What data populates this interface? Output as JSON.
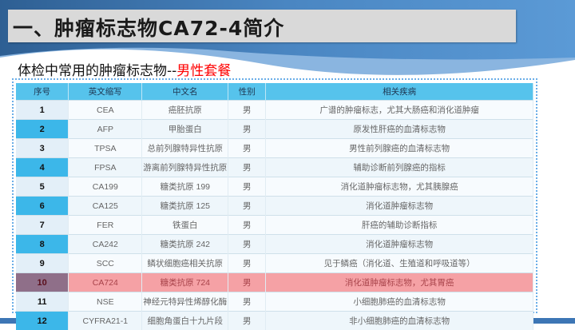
{
  "title": "一、肿瘤标志物CA72-4简介",
  "subtitle": {
    "text": "体检中常用的肿瘤标志物--",
    "highlight": "男性套餐"
  },
  "colors": {
    "header": "#56c3ec",
    "highlight_row": "#f5a1a5",
    "accent_red": "#ff0000",
    "number_cell_blue": "#3cb7e9"
  },
  "table": {
    "headers": [
      "序号",
      "英文缩写",
      "中文名",
      "性别",
      "相关疾病"
    ],
    "highlighted_row": 10,
    "rows": [
      {
        "no": "1",
        "abbr": "CEA",
        "name": "癌胚抗原",
        "sex": "男",
        "disease": "广谱的肿瘤标志，尤其大肠癌和消化道肿瘤"
      },
      {
        "no": "2",
        "abbr": "AFP",
        "name": "甲胎蛋白",
        "sex": "男",
        "disease": "原发性肝癌的血清标志物"
      },
      {
        "no": "3",
        "abbr": "TPSA",
        "name": "总前列腺特异性抗原",
        "sex": "男",
        "disease": "男性前列腺癌的血清标志物"
      },
      {
        "no": "4",
        "abbr": "FPSA",
        "name": "游离前列腺特异性抗原",
        "sex": "男",
        "disease": "辅助诊断前列腺癌的指标"
      },
      {
        "no": "5",
        "abbr": "CA199",
        "name": "糖类抗原 199",
        "sex": "男",
        "disease": "消化道肿瘤标志物，尤其胰腺癌"
      },
      {
        "no": "6",
        "abbr": "CA125",
        "name": "糖类抗原 125",
        "sex": "男",
        "disease": "消化道肿瘤标志物"
      },
      {
        "no": "7",
        "abbr": "FER",
        "name": "铁蛋白",
        "sex": "男",
        "disease": "肝癌的辅助诊断指标"
      },
      {
        "no": "8",
        "abbr": "CA242",
        "name": "糖类抗原 242",
        "sex": "男",
        "disease": "消化道肿瘤标志物"
      },
      {
        "no": "9",
        "abbr": "SCC",
        "name": "鳞状细胞癌相关抗原",
        "sex": "男",
        "disease": "见于鳞癌（消化道、生殖道和呼吸道等）"
      },
      {
        "no": "10",
        "abbr": "CA724",
        "name": "糖类抗原 724",
        "sex": "男",
        "disease": "消化道肿瘤标志物，尤其胃癌"
      },
      {
        "no": "11",
        "abbr": "NSE",
        "name": "神经元特异性烯醇化酶",
        "sex": "男",
        "disease": "小细胞肺癌的血清标志物"
      },
      {
        "no": "12",
        "abbr": "CYFRA21-1",
        "name": "细胞角蛋白十九片段",
        "sex": "男",
        "disease": "非小细胞肺癌的血清标志物"
      }
    ]
  }
}
